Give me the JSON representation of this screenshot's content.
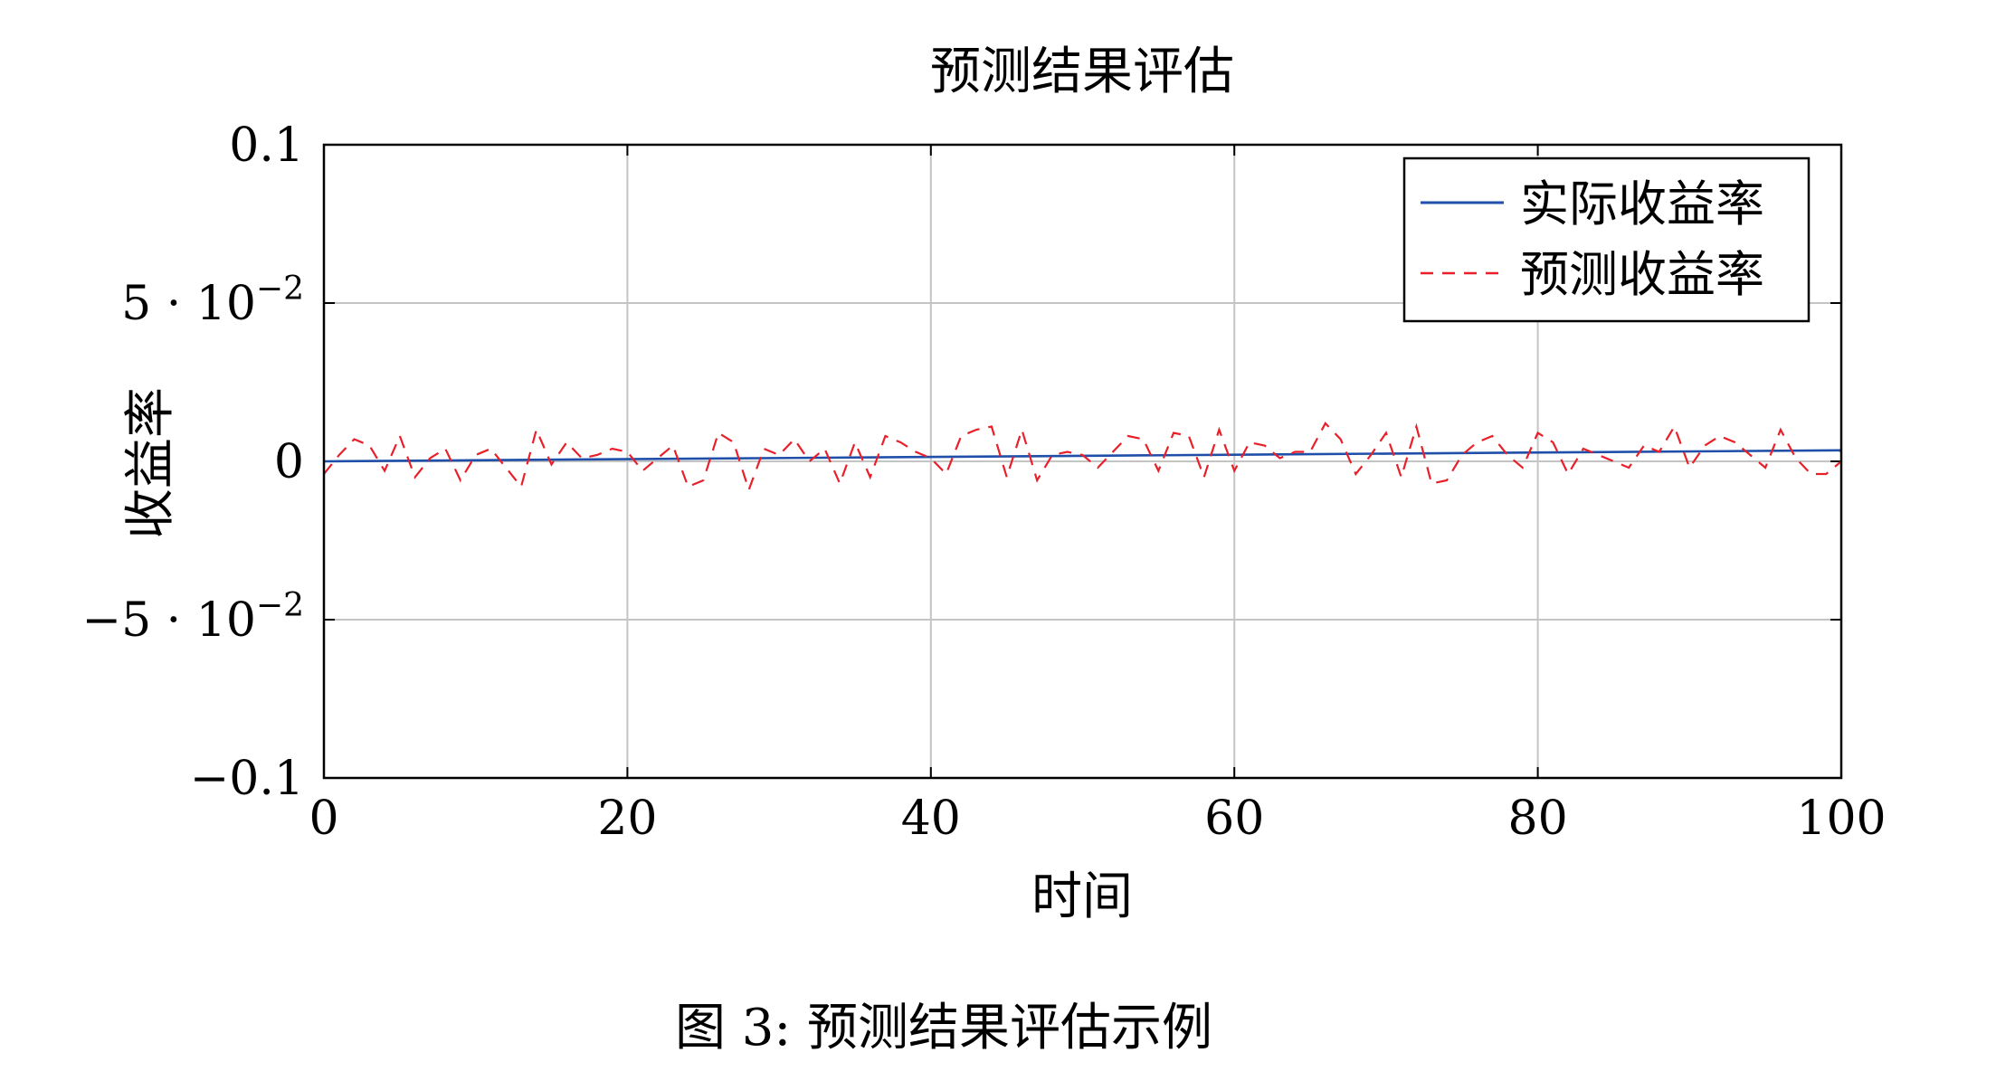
{
  "chart_data": {
    "type": "line",
    "title": "预测结果评估",
    "xlabel": "时间",
    "ylabel": "收益率",
    "xlim": [
      0,
      100
    ],
    "ylim": [
      -0.1,
      0.1
    ],
    "grid": true,
    "legend_position": "top-right",
    "x_ticks": [
      {
        "value": 0,
        "label": "0"
      },
      {
        "value": 20,
        "label": "20"
      },
      {
        "value": 40,
        "label": "40"
      },
      {
        "value": 60,
        "label": "60"
      },
      {
        "value": 80,
        "label": "80"
      },
      {
        "value": 100,
        "label": "100"
      }
    ],
    "y_ticks": [
      {
        "value": 0.1,
        "mantissa": "0.1",
        "exponent": ""
      },
      {
        "value": 0.05,
        "mantissa": "5 · 10",
        "exponent": "−2"
      },
      {
        "value": 0,
        "mantissa": "0",
        "exponent": ""
      },
      {
        "value": -0.05,
        "mantissa": "−5 · 10",
        "exponent": "−2"
      },
      {
        "value": -0.1,
        "mantissa": "−0.1",
        "exponent": ""
      }
    ],
    "series": [
      {
        "name": "实际收益率",
        "color": "#1f4fa8",
        "style": "solid",
        "x": [
          0,
          100
        ],
        "y": [
          0.0,
          0.0035
        ]
      },
      {
        "name": "预测收益率",
        "color": "#e8202a",
        "style": "dashed",
        "x": [
          0,
          1,
          2,
          3,
          4,
          5,
          6,
          7,
          8,
          9,
          10,
          11,
          12,
          13,
          14,
          15,
          16,
          17,
          18,
          19,
          20,
          21,
          22,
          23,
          24,
          25,
          26,
          27,
          28,
          29,
          30,
          31,
          32,
          33,
          34,
          35,
          36,
          37,
          38,
          39,
          40,
          41,
          42,
          43,
          44,
          45,
          46,
          47,
          48,
          49,
          50,
          51,
          52,
          53,
          54,
          55,
          56,
          57,
          58,
          59,
          60,
          61,
          62,
          63,
          64,
          65,
          66,
          67,
          68,
          69,
          70,
          71,
          72,
          73,
          74,
          75,
          76,
          77,
          78,
          79,
          80,
          81,
          82,
          83,
          84,
          85,
          86,
          87,
          88,
          89,
          90,
          91,
          92,
          93,
          94,
          95,
          96,
          97,
          98,
          99,
          100
        ],
        "y": [
          -0.004,
          0.002,
          0.007,
          0.005,
          -0.003,
          0.008,
          -0.005,
          0.001,
          0.004,
          -0.006,
          0.002,
          0.004,
          -0.002,
          -0.008,
          0.01,
          -0.001,
          0.006,
          0.001,
          0.002,
          0.004,
          0.003,
          -0.003,
          0.001,
          0.005,
          -0.008,
          -0.006,
          0.009,
          0.006,
          -0.009,
          0.004,
          0.002,
          0.007,
          0.0,
          0.004,
          -0.007,
          0.006,
          -0.005,
          0.008,
          0.006,
          0.003,
          0.001,
          -0.004,
          0.008,
          0.01,
          0.011,
          -0.005,
          0.01,
          -0.006,
          0.002,
          0.003,
          0.002,
          -0.002,
          0.003,
          0.008,
          0.007,
          -0.003,
          0.009,
          0.008,
          -0.005,
          0.01,
          -0.003,
          0.006,
          0.005,
          0.001,
          0.003,
          0.003,
          0.012,
          0.007,
          -0.004,
          0.002,
          0.009,
          -0.005,
          0.011,
          -0.007,
          -0.006,
          0.002,
          0.006,
          0.008,
          0.002,
          -0.002,
          0.009,
          0.006,
          -0.004,
          0.004,
          0.002,
          0.0,
          -0.002,
          0.005,
          0.003,
          0.011,
          -0.002,
          0.005,
          0.008,
          0.006,
          0.002,
          -0.002,
          0.01,
          0.001,
          -0.004,
          -0.004,
          0.0
        ]
      }
    ]
  },
  "caption": "图 3: 预测结果评估示例"
}
